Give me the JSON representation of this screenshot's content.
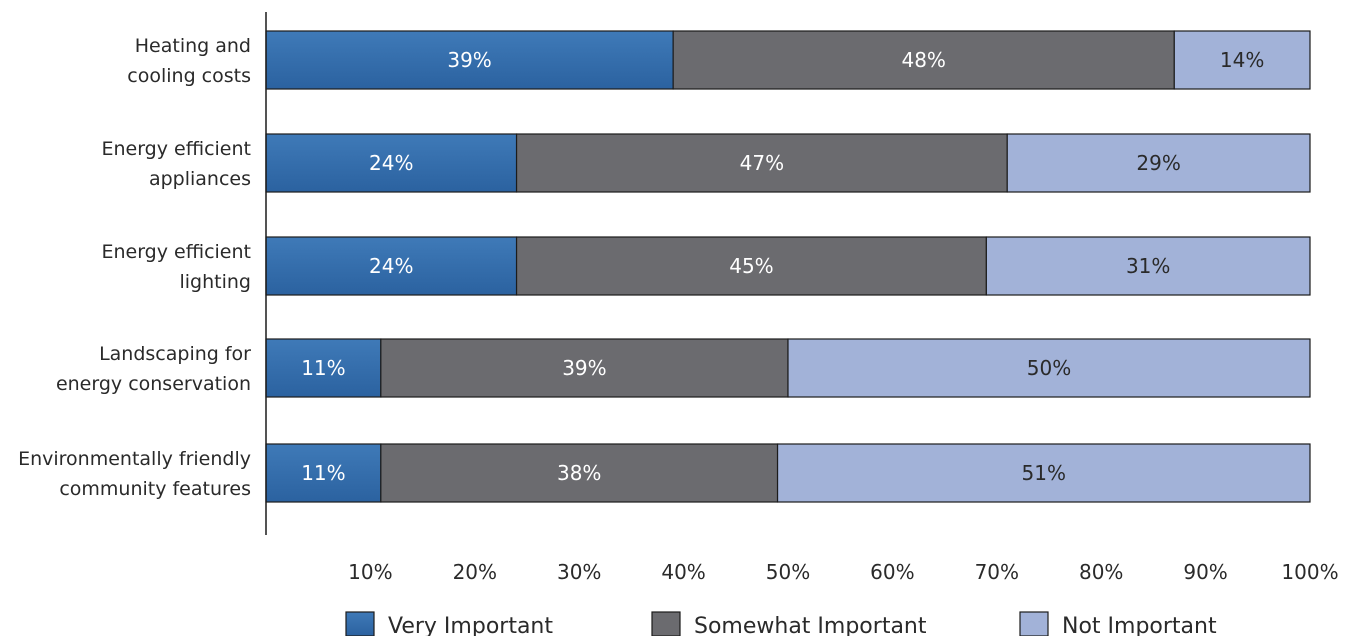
{
  "chart_data": {
    "type": "bar",
    "orientation": "horizontal",
    "stacked": true,
    "categories": [
      [
        "Heating and",
        "cooling costs"
      ],
      [
        "Energy efficient",
        "appliances"
      ],
      [
        "Energy efficient",
        "lighting"
      ],
      [
        "Landscaping for",
        "energy conservation"
      ],
      [
        "Environmentally friendly",
        "community features"
      ]
    ],
    "series": [
      {
        "name": "Very Important",
        "values": [
          39,
          24,
          24,
          11,
          11
        ],
        "labels": [
          "39%",
          "24%",
          "24%",
          "11%",
          "11%"
        ],
        "color": "#2b62a0",
        "label_color": "#ffffff"
      },
      {
        "name": "Somewhat Important",
        "values": [
          48,
          47,
          45,
          39,
          38
        ],
        "labels": [
          "48%",
          "47%",
          "45%",
          "39%",
          "38%"
        ],
        "color": "#6b6b6f",
        "label_color": "#ffffff"
      },
      {
        "name": "Not Important",
        "values": [
          14,
          29,
          31,
          50,
          51
        ],
        "labels": [
          "14%",
          "29%",
          "31%",
          "50%",
          "51%"
        ],
        "color": "#a2b2d8",
        "label_color": "#2a2a2a"
      }
    ],
    "xlim": [
      0,
      100
    ],
    "xticks": [
      10,
      20,
      30,
      40,
      50,
      60,
      70,
      80,
      90,
      100
    ],
    "xtick_labels": [
      "10%",
      "20%",
      "30%",
      "40%",
      "50%",
      "60%",
      "70%",
      "80%",
      "90%",
      "100%"
    ],
    "xlabel": "",
    "ylabel": "",
    "title": "",
    "grid": false,
    "legend_position": "bottom"
  }
}
